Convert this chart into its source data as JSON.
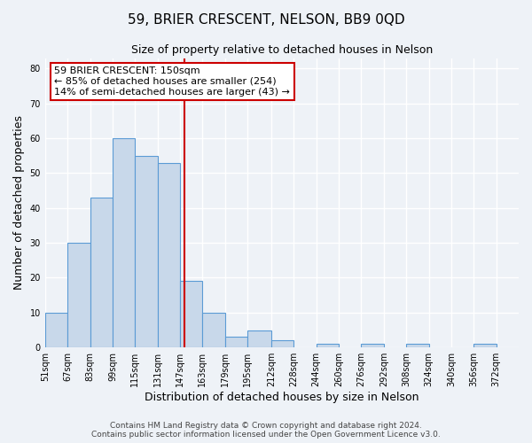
{
  "title": "59, BRIER CRESCENT, NELSON, BB9 0QD",
  "subtitle": "Size of property relative to detached houses in Nelson",
  "xlabel": "Distribution of detached houses by size in Nelson",
  "ylabel": "Number of detached properties",
  "bin_labels": [
    "51sqm",
    "67sqm",
    "83sqm",
    "99sqm",
    "115sqm",
    "131sqm",
    "147sqm",
    "163sqm",
    "179sqm",
    "195sqm",
    "212sqm",
    "228sqm",
    "244sqm",
    "260sqm",
    "276sqm",
    "292sqm",
    "308sqm",
    "324sqm",
    "340sqm",
    "356sqm",
    "372sqm"
  ],
  "bin_edges": [
    51,
    67,
    83,
    99,
    115,
    131,
    147,
    163,
    179,
    195,
    212,
    228,
    244,
    260,
    276,
    292,
    308,
    324,
    340,
    356,
    372,
    388
  ],
  "counts": [
    10,
    30,
    43,
    60,
    55,
    53,
    19,
    10,
    3,
    5,
    2,
    0,
    1,
    0,
    1,
    0,
    1,
    0,
    0,
    1,
    0
  ],
  "bar_color": "#c8d8ea",
  "bar_edge_color": "#5b9bd5",
  "vline_x": 150,
  "vline_color": "#cc0000",
  "annotation_title": "59 BRIER CRESCENT: 150sqm",
  "annotation_line1": "← 85% of detached houses are smaller (254)",
  "annotation_line2": "14% of semi-detached houses are larger (43) →",
  "annotation_box_color": "#ffffff",
  "annotation_box_edgecolor": "#cc0000",
  "ylim": [
    0,
    83
  ],
  "yticks": [
    0,
    10,
    20,
    30,
    40,
    50,
    60,
    70,
    80
  ],
  "footer1": "Contains HM Land Registry data © Crown copyright and database right 2024.",
  "footer2": "Contains public sector information licensed under the Open Government Licence v3.0.",
  "background_color": "#eef2f7",
  "grid_color": "#ffffff",
  "title_fontsize": 11,
  "subtitle_fontsize": 9,
  "axis_label_fontsize": 9,
  "tick_fontsize": 7,
  "footer_fontsize": 6.5,
  "annotation_fontsize": 8
}
